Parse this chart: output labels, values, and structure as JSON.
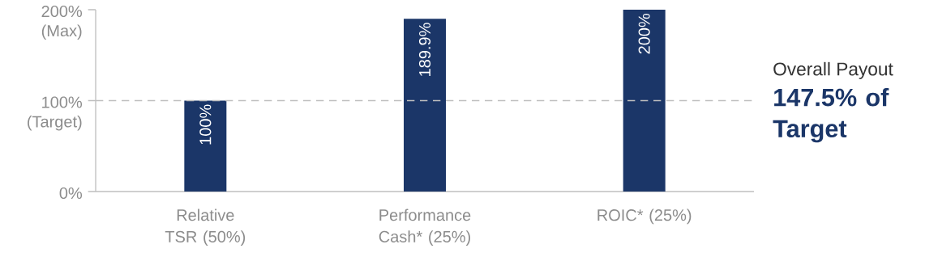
{
  "chart_data": {
    "type": "bar",
    "categories": [
      "Relative TSR (50%)",
      "Performance Cash* (25%)",
      "ROIC* (25%)"
    ],
    "values": [
      100,
      189.9,
      200
    ],
    "color": "#1b3668",
    "value_labels": [
      "100%",
      "189.9%",
      "200%"
    ],
    "ylim": [
      0,
      200
    ],
    "yticks": [
      {
        "value": 0,
        "label": "0%"
      },
      {
        "value": 100,
        "label": "100% (Target)"
      },
      {
        "value": 200,
        "label": "200% (Max)"
      }
    ],
    "ref_lines": [
      {
        "axis": "y",
        "value": 100,
        "color": "#bfbfbf",
        "line_style": "dashed"
      }
    ],
    "annotations": [
      "Overall Payout",
      "147.5% of Target"
    ]
  }
}
